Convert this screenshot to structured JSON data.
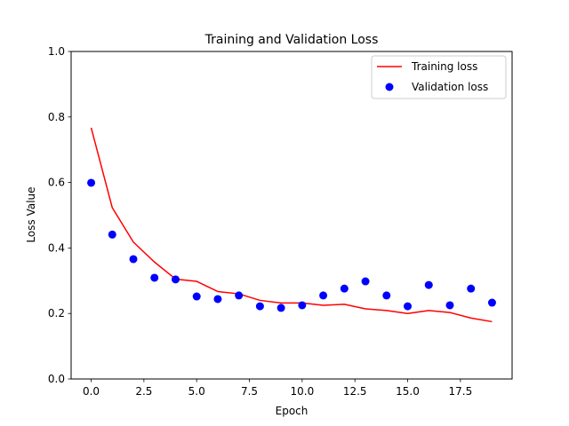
{
  "chart_data": {
    "type": "line",
    "title": "Training and Validation Loss",
    "xlabel": "Epoch",
    "ylabel": "Loss Value",
    "xlim": [
      -0.95,
      19.95
    ],
    "ylim": [
      0.0,
      1.0
    ],
    "xticks": [
      0.0,
      2.5,
      5.0,
      7.5,
      10.0,
      12.5,
      15.0,
      17.5
    ],
    "xtick_labels": [
      "0.0",
      "2.5",
      "5.0",
      "7.5",
      "10.0",
      "12.5",
      "15.0",
      "17.5"
    ],
    "yticks": [
      0.0,
      0.2,
      0.4,
      0.6,
      0.8,
      1.0
    ],
    "ytick_labels": [
      "0.0",
      "0.2",
      "0.4",
      "0.6",
      "0.8",
      "1.0"
    ],
    "grid": false,
    "legend_position": "top-right",
    "x": [
      0,
      1,
      2,
      3,
      4,
      5,
      6,
      7,
      8,
      9,
      10,
      11,
      12,
      13,
      14,
      15,
      16,
      17,
      18,
      19
    ],
    "series": [
      {
        "name": "Training loss",
        "style": "line",
        "color": "#ff0000",
        "values": [
          0.767,
          0.523,
          0.418,
          0.357,
          0.305,
          0.298,
          0.267,
          0.26,
          0.24,
          0.232,
          0.232,
          0.225,
          0.228,
          0.214,
          0.209,
          0.2,
          0.209,
          0.203,
          0.186,
          0.175
        ]
      },
      {
        "name": "Validation loss",
        "style": "markers",
        "color": "#0000ff",
        "values": [
          0.599,
          0.441,
          0.366,
          0.309,
          0.304,
          0.252,
          0.244,
          0.255,
          0.222,
          0.217,
          0.225,
          0.255,
          0.276,
          0.298,
          0.255,
          0.222,
          0.287,
          0.225,
          0.276,
          0.233
        ]
      }
    ]
  }
}
